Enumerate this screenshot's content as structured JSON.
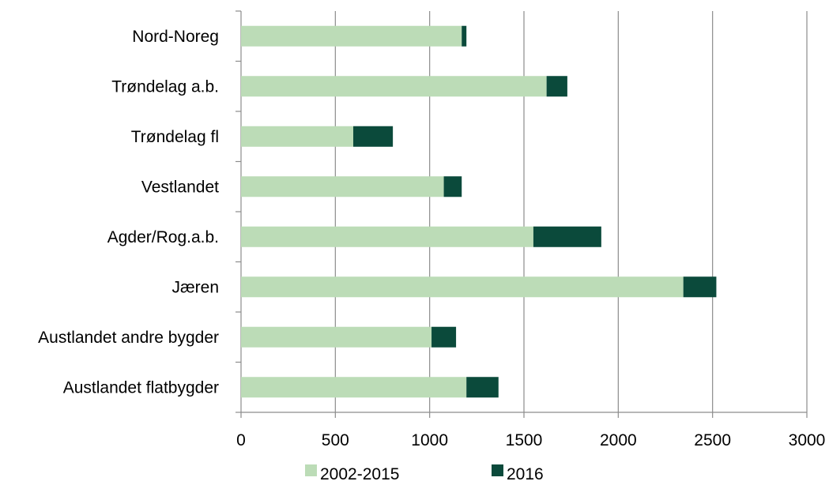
{
  "chart_data": {
    "type": "bar",
    "orientation": "horizontal",
    "stacked": true,
    "categories": [
      "Nord-Noreg",
      "Trøndelag a.b.",
      "Trøndelag fl",
      "Vestlandet",
      "Agder/Rog.a.b.",
      "Jæren",
      "Austlandet andre bygder",
      "Austlandet flatbygder"
    ],
    "series": [
      {
        "name": "2002-2015",
        "color": "#bcdcb7",
        "values": [
          1170,
          1620,
          595,
          1075,
          1550,
          2345,
          1010,
          1195
        ]
      },
      {
        "name": "2016",
        "color": "#0b4a3b",
        "values": [
          25,
          110,
          210,
          95,
          360,
          175,
          130,
          170
        ]
      }
    ],
    "xlim": [
      0,
      3000
    ],
    "xticks": [
      "0",
      "500",
      "1000",
      "1500",
      "2000",
      "2500",
      "3000"
    ],
    "grid": "vertical",
    "legend_position": "bottom",
    "title": "",
    "xlabel": "",
    "ylabel": ""
  }
}
